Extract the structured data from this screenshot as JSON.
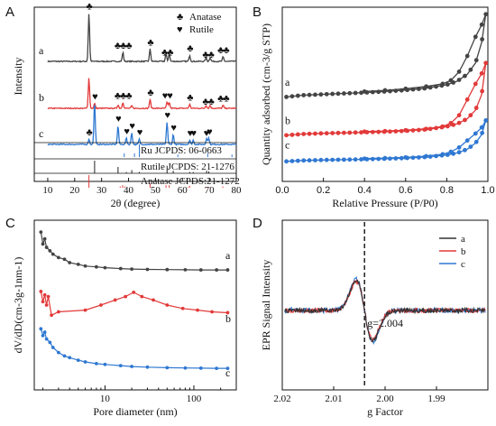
{
  "chart_data": [
    {
      "panel": "A",
      "type": "line",
      "xlabel": "2θ (degree)",
      "ylabel": "Intensity",
      "xlim": [
        5,
        80
      ],
      "xticks": [
        "10",
        "20",
        "30",
        "40",
        "50",
        "60",
        "70",
        "80"
      ],
      "legend": [
        {
          "symbol": "♣",
          "label": "Anatase"
        },
        {
          "symbol": "♥",
          "label": "Rutile"
        }
      ],
      "series": [
        {
          "name": "a",
          "color": "#444444",
          "baseline": 0.18,
          "peaks": [
            [
              25.3,
              0.86
            ],
            [
              37.9,
              0.16
            ],
            [
              48.0,
              0.22
            ],
            [
              53.9,
              0.14
            ],
            [
              55.1,
              0.14
            ],
            [
              62.7,
              0.11
            ],
            [
              68.8,
              0.07
            ],
            [
              70.3,
              0.07
            ],
            [
              75.1,
              0.08
            ]
          ]
        },
        {
          "name": "b",
          "color": "#e23a3a",
          "baseline": 0.17,
          "peaks": [
            [
              25.3,
              0.62
            ],
            [
              27.4,
              0.1
            ],
            [
              36.1,
              0.07
            ],
            [
              37.9,
              0.12
            ],
            [
              41.2,
              0.05
            ],
            [
              48.0,
              0.18
            ],
            [
              54.3,
              0.12
            ],
            [
              55.1,
              0.12
            ],
            [
              62.7,
              0.08
            ],
            [
              68.8,
              0.06
            ],
            [
              70.3,
              0.06
            ],
            [
              75.1,
              0.06
            ]
          ]
        },
        {
          "name": "c",
          "color": "#2f78d2",
          "baseline": 0.13,
          "peaks": [
            [
              25.3,
              0.1
            ],
            [
              27.4,
              0.8
            ],
            [
              36.1,
              0.35
            ],
            [
              39.2,
              0.12
            ],
            [
              41.2,
              0.22
            ],
            [
              44.0,
              0.1
            ],
            [
              54.3,
              0.42
            ],
            [
              56.6,
              0.18
            ],
            [
              62.7,
              0.08
            ],
            [
              64.0,
              0.08
            ],
            [
              69.0,
              0.12
            ],
            [
              69.8,
              0.12
            ]
          ]
        }
      ],
      "peak_marks": [
        {
          "curve": "a",
          "x": 25.3,
          "mark": "anatase"
        },
        {
          "curve": "a",
          "x": 37.9,
          "mark": "anatase3"
        },
        {
          "curve": "a",
          "x": 48.0,
          "mark": "anatase"
        },
        {
          "curve": "a",
          "x": 54.3,
          "mark": "anatase2"
        },
        {
          "curve": "a",
          "x": 62.7,
          "mark": "anatase"
        },
        {
          "curve": "a",
          "x": 69.5,
          "mark": "anatase2"
        },
        {
          "curve": "a",
          "x": 75.1,
          "mark": "anatase2"
        },
        {
          "curve": "b",
          "x": 27.4,
          "mark": "rutile"
        },
        {
          "curve": "b",
          "x": 37.9,
          "mark": "anatase3"
        },
        {
          "curve": "b",
          "x": 48.0,
          "mark": "anatase"
        },
        {
          "curve": "b",
          "x": 54.3,
          "mark": "rutile2"
        },
        {
          "curve": "b",
          "x": 62.7,
          "mark": "anatase"
        },
        {
          "curve": "b",
          "x": 69.5,
          "mark": "anatase2"
        },
        {
          "curve": "b",
          "x": 75.1,
          "mark": "anatase2"
        },
        {
          "curve": "c",
          "x": 25.3,
          "mark": "anatase"
        },
        {
          "curve": "c",
          "x": 36.1,
          "mark": "rutile"
        },
        {
          "curve": "c",
          "x": 39.2,
          "mark": "rutile"
        },
        {
          "curve": "c",
          "x": 41.2,
          "mark": "rutile"
        },
        {
          "curve": "c",
          "x": 44.0,
          "mark": "rutile"
        },
        {
          "curve": "c",
          "x": 54.3,
          "mark": "rutile"
        },
        {
          "curve": "c",
          "x": 56.6,
          "mark": "rutile"
        },
        {
          "curve": "c",
          "x": 62.7,
          "mark": "rutile"
        },
        {
          "curve": "c",
          "x": 64.0,
          "mark": "rutile"
        },
        {
          "curve": "c",
          "x": 68.8,
          "mark": "rutile"
        },
        {
          "curve": "c",
          "x": 69.9,
          "mark": "rutile"
        }
      ],
      "references": [
        {
          "label": "Ru     JCPDS: 06-0663",
          "color": "#2f78d2",
          "x": [
            38.4,
            42.2,
            44.0,
            58.3,
            69.4,
            78.4
          ],
          "h": [
            0.3,
            0.3,
            1.0,
            0.2,
            0.3,
            0.2
          ]
        },
        {
          "label": "Rutile    JCPDS: 21-1276",
          "color": "#222222",
          "x": [
            27.4,
            36.1,
            39.2,
            41.2,
            44.0,
            54.3,
            56.6,
            62.7,
            64.0,
            69.0,
            69.8
          ],
          "h": [
            1.0,
            0.5,
            0.1,
            0.25,
            0.1,
            0.6,
            0.2,
            0.1,
            0.1,
            0.2,
            0.15
          ]
        },
        {
          "label": "Anatase JCPDS:21-1272",
          "color": "#e23a3a",
          "x": [
            25.3,
            36.9,
            37.8,
            38.6,
            48.0,
            53.9,
            55.1,
            62.1,
            62.7,
            68.8,
            70.3,
            75.0
          ],
          "h": [
            1.0,
            0.1,
            0.2,
            0.1,
            0.35,
            0.2,
            0.2,
            0.05,
            0.15,
            0.06,
            0.06,
            0.1
          ]
        }
      ]
    },
    {
      "panel": "B",
      "type": "line",
      "xlabel": "Relative Pressure (P/P0)",
      "ylabel": "Quantity adsorbed (cm-3/g STP)",
      "xlim": [
        0,
        1.0
      ],
      "xticks": [
        "0.0",
        "0.2",
        "0.4",
        "0.6",
        "0.8",
        "1.0"
      ],
      "series": [
        {
          "name": "a",
          "color": "#444444",
          "adsorption": [
            [
              0.02,
              0.485
            ],
            [
              0.1,
              0.495
            ],
            [
              0.2,
              0.5
            ],
            [
              0.3,
              0.505
            ],
            [
              0.4,
              0.51
            ],
            [
              0.5,
              0.516
            ],
            [
              0.6,
              0.524
            ],
            [
              0.7,
              0.535
            ],
            [
              0.8,
              0.555
            ],
            [
              0.85,
              0.575
            ],
            [
              0.9,
              0.615
            ],
            [
              0.94,
              0.68
            ],
            [
              0.97,
              0.8
            ],
            [
              0.99,
              0.96
            ]
          ],
          "desorption": [
            [
              0.99,
              0.96
            ],
            [
              0.97,
              0.9
            ],
            [
              0.94,
              0.83
            ],
            [
              0.9,
              0.72
            ],
            [
              0.86,
              0.63
            ],
            [
              0.82,
              0.58
            ],
            [
              0.78,
              0.56
            ],
            [
              0.7,
              0.545
            ],
            [
              0.6,
              0.532
            ],
            [
              0.5,
              0.523
            ],
            [
              0.4,
              0.516
            ]
          ]
        },
        {
          "name": "b",
          "color": "#e23a3a",
          "adsorption": [
            [
              0.02,
              0.265
            ],
            [
              0.1,
              0.272
            ],
            [
              0.2,
              0.276
            ],
            [
              0.3,
              0.279
            ],
            [
              0.4,
              0.282
            ],
            [
              0.5,
              0.285
            ],
            [
              0.6,
              0.29
            ],
            [
              0.7,
              0.298
            ],
            [
              0.8,
              0.315
            ],
            [
              0.85,
              0.33
            ],
            [
              0.9,
              0.36
            ],
            [
              0.94,
              0.41
            ],
            [
              0.97,
              0.5
            ],
            [
              0.99,
              0.68
            ]
          ],
          "desorption": [
            [
              0.99,
              0.68
            ],
            [
              0.97,
              0.62
            ],
            [
              0.94,
              0.56
            ],
            [
              0.9,
              0.47
            ],
            [
              0.86,
              0.38
            ],
            [
              0.82,
              0.335
            ],
            [
              0.78,
              0.315
            ],
            [
              0.7,
              0.302
            ],
            [
              0.6,
              0.294
            ],
            [
              0.5,
              0.289
            ],
            [
              0.4,
              0.286
            ]
          ]
        },
        {
          "name": "c",
          "color": "#2f78d2",
          "adsorption": [
            [
              0.02,
              0.115
            ],
            [
              0.1,
              0.12
            ],
            [
              0.2,
              0.123
            ],
            [
              0.3,
              0.125
            ],
            [
              0.4,
              0.127
            ],
            [
              0.5,
              0.13
            ],
            [
              0.6,
              0.134
            ],
            [
              0.7,
              0.14
            ],
            [
              0.8,
              0.152
            ],
            [
              0.85,
              0.163
            ],
            [
              0.9,
              0.185
            ],
            [
              0.94,
              0.22
            ],
            [
              0.97,
              0.27
            ],
            [
              0.99,
              0.35
            ]
          ],
          "desorption": [
            [
              0.99,
              0.35
            ],
            [
              0.97,
              0.31
            ],
            [
              0.94,
              0.275
            ],
            [
              0.9,
              0.235
            ],
            [
              0.86,
              0.195
            ],
            [
              0.82,
              0.17
            ],
            [
              0.78,
              0.156
            ],
            [
              0.7,
              0.145
            ],
            [
              0.6,
              0.138
            ],
            [
              0.5,
              0.134
            ],
            [
              0.4,
              0.131
            ]
          ]
        }
      ]
    },
    {
      "panel": "C",
      "type": "line",
      "xlabel": "Pore diameter (nm)",
      "ylabel": "dV/dD(cm-3g-1nm-1)",
      "xscale": "log",
      "xlim": [
        1.6,
        300
      ],
      "xticks": [
        "10",
        "100"
      ],
      "series": [
        {
          "name": "a",
          "color": "#444444",
          "points": [
            [
              1.9,
              0.93
            ],
            [
              2.0,
              0.86
            ],
            [
              2.1,
              0.89
            ],
            [
              2.2,
              0.84
            ],
            [
              2.4,
              0.82
            ],
            [
              2.6,
              0.8
            ],
            [
              3.0,
              0.78
            ],
            [
              3.5,
              0.77
            ],
            [
              4,
              0.75
            ],
            [
              5,
              0.74
            ],
            [
              6,
              0.73
            ],
            [
              8,
              0.725
            ],
            [
              10,
              0.72
            ],
            [
              15,
              0.715
            ],
            [
              20,
              0.712
            ],
            [
              30,
              0.71
            ],
            [
              50,
              0.709
            ],
            [
              80,
              0.708
            ],
            [
              120,
              0.707
            ],
            [
              180,
              0.707
            ],
            [
              240,
              0.707
            ]
          ]
        },
        {
          "name": "b",
          "color": "#e23a3a",
          "points": [
            [
              1.9,
              0.58
            ],
            [
              2.0,
              0.52
            ],
            [
              2.1,
              0.56
            ],
            [
              2.2,
              0.5
            ],
            [
              2.3,
              0.55
            ],
            [
              2.5,
              0.44
            ],
            [
              3,
              0.46
            ],
            [
              6,
              0.47
            ],
            [
              9,
              0.5
            ],
            [
              13,
              0.53
            ],
            [
              17,
              0.55
            ],
            [
              21,
              0.575
            ],
            [
              26,
              0.55
            ],
            [
              35,
              0.53
            ],
            [
              50,
              0.5
            ],
            [
              75,
              0.48
            ],
            [
              110,
              0.47
            ],
            [
              160,
              0.46
            ],
            [
              240,
              0.455
            ]
          ]
        },
        {
          "name": "c",
          "color": "#2f78d2",
          "points": [
            [
              1.9,
              0.36
            ],
            [
              2.0,
              0.32
            ],
            [
              2.1,
              0.34
            ],
            [
              2.2,
              0.3
            ],
            [
              2.4,
              0.28
            ],
            [
              2.6,
              0.25
            ],
            [
              3.0,
              0.22
            ],
            [
              3.5,
              0.2
            ],
            [
              4,
              0.19
            ],
            [
              5,
              0.175
            ],
            [
              6,
              0.165
            ],
            [
              8,
              0.155
            ],
            [
              10,
              0.15
            ],
            [
              15,
              0.143
            ],
            [
              20,
              0.138
            ],
            [
              30,
              0.134
            ],
            [
              50,
              0.131
            ],
            [
              80,
              0.129
            ],
            [
              120,
              0.128
            ],
            [
              180,
              0.127
            ],
            [
              240,
              0.127
            ]
          ]
        }
      ]
    },
    {
      "panel": "D",
      "type": "line",
      "xlabel": "g Factor",
      "ylabel": "EPR Signal Intensity",
      "xlim": [
        2.02,
        1.98
      ],
      "xticks": [
        "2.02",
        "2.01",
        "2.00",
        "1.99"
      ],
      "annotation": "g=2.004",
      "reference_line_g": 2.004,
      "series": [
        {
          "name": "a",
          "color": "#333333"
        },
        {
          "name": "b",
          "color": "#e23a3a"
        },
        {
          "name": "c",
          "color": "#2f78d2"
        }
      ]
    }
  ],
  "panel_letters": [
    "A",
    "B",
    "C",
    "D"
  ]
}
